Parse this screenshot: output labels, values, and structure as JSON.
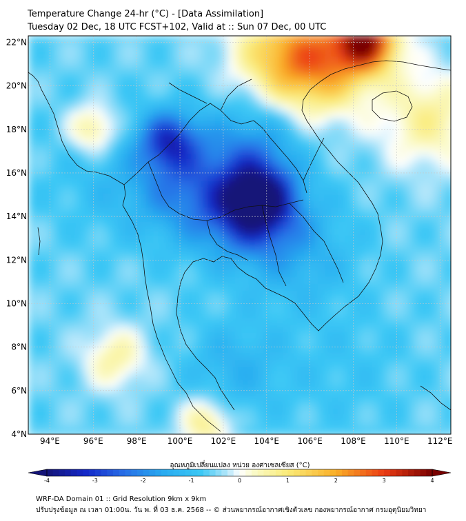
{
  "header": {
    "title": "Temperature Change 24-hr (°C) - [Data Assimilation]",
    "subtitle": "Tuesday 02 Dec, 18 UTC FCST+102, Valid at :: Sun 07 Dec, 00 UTC"
  },
  "map": {
    "lon_ticks": [
      "94°E",
      "96°E",
      "98°E",
      "100°E",
      "102°E",
      "104°E",
      "106°E",
      "108°E",
      "110°E",
      "112°E"
    ],
    "lat_ticks": [
      "22°N",
      "20°N",
      "18°N",
      "16°N",
      "14°N",
      "12°N",
      "10°N",
      "8°N",
      "6°N",
      "4°N"
    ],
    "lon_range": [
      93,
      112.5
    ],
    "lat_range": [
      4,
      22.3
    ],
    "anomalies": [
      {
        "lon": 103.6,
        "lat": 14.8,
        "value": -3.4,
        "spread": 1.1
      },
      {
        "lon": 103.0,
        "lat": 14.2,
        "value": -2.2,
        "spread": 1.6
      },
      {
        "lon": 99.5,
        "lat": 17.5,
        "value": -2.6,
        "spread": 0.9
      },
      {
        "lon": 100.2,
        "lat": 15.5,
        "value": -2.0,
        "spread": 1.8
      },
      {
        "lon": 103.5,
        "lat": 17.5,
        "value": -1.6,
        "spread": 1.5
      },
      {
        "lon": 105.5,
        "lat": 12.5,
        "value": -1.4,
        "spread": 1.8
      },
      {
        "lon": 102.5,
        "lat": 7.0,
        "value": -1.3,
        "spread": 1.6
      },
      {
        "lon": 96.5,
        "lat": 16.0,
        "value": -1.0,
        "spread": 2.0
      },
      {
        "lon": 107.5,
        "lat": 7.0,
        "value": -0.9,
        "spread": 2.2
      },
      {
        "lon": 108.6,
        "lat": 22.1,
        "value": 3.3,
        "spread": 1.0
      },
      {
        "lon": 106.5,
        "lat": 21.0,
        "value": 1.8,
        "spread": 1.6
      },
      {
        "lon": 104.5,
        "lat": 21.5,
        "value": 1.0,
        "spread": 1.6
      },
      {
        "lon": 111.5,
        "lat": 18.5,
        "value": 0.7,
        "spread": 1.6
      },
      {
        "lon": 96.0,
        "lat": 18.0,
        "value": 0.9,
        "spread": 0.8
      },
      {
        "lon": 97.0,
        "lat": 7.5,
        "value": 0.6,
        "spread": 1.0
      },
      {
        "lon": 101.2,
        "lat": 4.5,
        "value": 0.9,
        "spread": 0.8
      }
    ],
    "base_value": -0.6
  },
  "colorbar": {
    "label": "อุณหภูมิเปลี่ยนแปลง หน่วย องศาเซลเซียส (°C)",
    "ticks": [
      "-4",
      "-3",
      "-2",
      "-1",
      "0",
      "1",
      "2",
      "3",
      "4"
    ],
    "min": -4,
    "max": 4
  },
  "footer": {
    "line1": "WRF-DA Domain 01 :: Grid Resolution 9km x 9km",
    "line2": "ปรับปรุงข้อมูล ณ เวลา 01:00น. วัน พ. ที่ 03 ธ.ค. 2568 -- © ส่วนพยากรณ์อากาศเชิงตัวเลข กองพยากรณ์อากาศ กรมอุตุนิยมวิทยา"
  }
}
